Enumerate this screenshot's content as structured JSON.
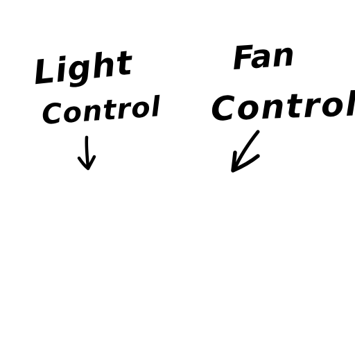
{
  "labels": {
    "light": {
      "line1": "Light",
      "line2": "Control"
    },
    "fan": {
      "line1": "Fan",
      "line2": "Control"
    }
  },
  "colors": {
    "background": "#ffffff",
    "ink": "#000000"
  }
}
